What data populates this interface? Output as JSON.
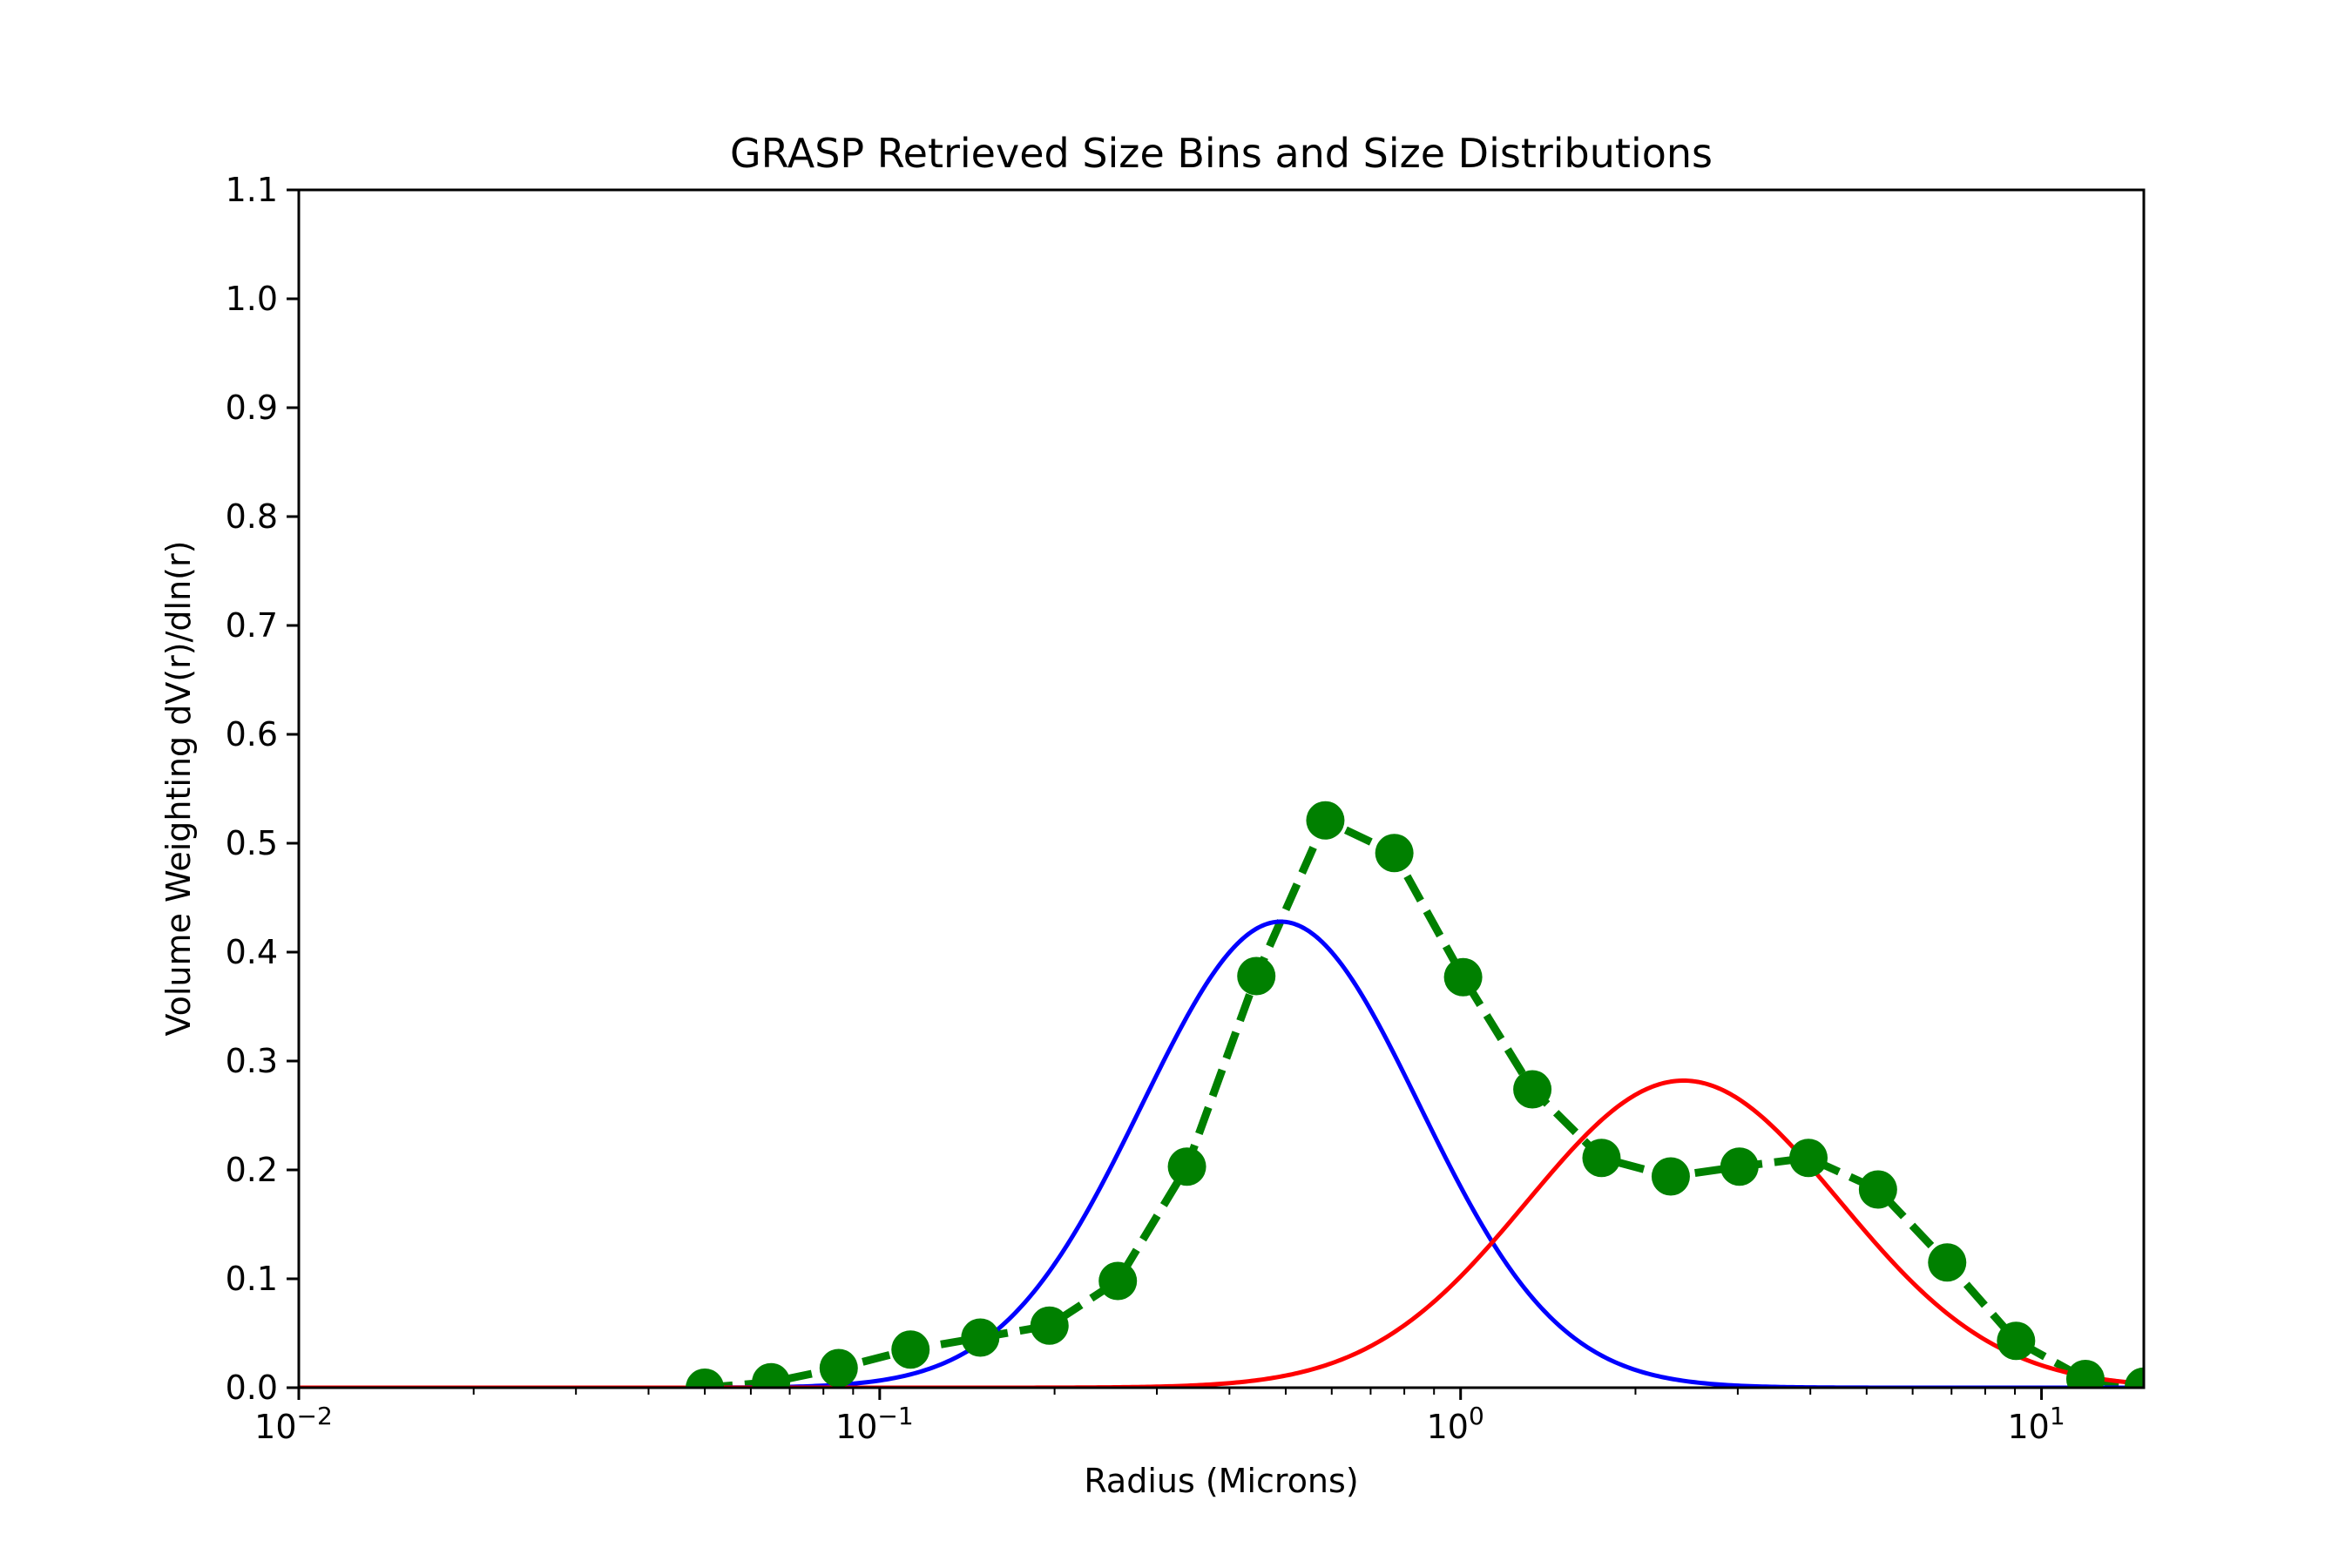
{
  "chart_data": {
    "type": "line",
    "title": "GRASP Retrieved Size Bins and Size Distributions",
    "xlabel": "Radius (Microns)",
    "ylabel": "Volume Weighting dV(r)/dln(r)",
    "xscale": "log",
    "xlim": [
      0.01,
      15
    ],
    "ylim": [
      0.0,
      1.1
    ],
    "xticks": [
      {
        "value": 0.01,
        "base": "10",
        "exp": "−2"
      },
      {
        "value": 0.1,
        "base": "10",
        "exp": "−1"
      },
      {
        "value": 1,
        "base": "10",
        "exp": "0"
      },
      {
        "value": 10,
        "base": "10",
        "exp": "1"
      }
    ],
    "yticks": [
      "0.0",
      "0.1",
      "0.2",
      "0.3",
      "0.4",
      "0.5",
      "0.6",
      "0.7",
      "0.8",
      "0.9",
      "1.0",
      "1.1"
    ],
    "grid": false,
    "series": [
      {
        "color": "#008000",
        "style": "dashed-markers",
        "x": [
          0.05,
          0.065,
          0.085,
          0.113,
          0.149,
          0.196,
          0.257,
          0.338,
          0.445,
          0.585,
          0.769,
          1.01,
          1.329,
          1.748,
          2.3,
          3.02,
          3.97,
          5.23,
          6.88,
          9.04,
          11.9,
          15.0
        ],
        "values": [
          0.0,
          0.005,
          0.018,
          0.035,
          0.046,
          0.057,
          0.098,
          0.203,
          0.378,
          0.521,
          0.491,
          0.377,
          0.274,
          0.211,
          0.194,
          0.203,
          0.211,
          0.182,
          0.115,
          0.043,
          0.008,
          0.001
        ]
      },
      {
        "color": "#0000ff",
        "style": "lognormal",
        "mode": 0.49,
        "peak": 0.428,
        "sigma": 0.55
      },
      {
        "color": "#ff0000",
        "style": "lognormal",
        "mode": 2.42,
        "peak": 0.282,
        "sigma": 0.62
      }
    ]
  }
}
